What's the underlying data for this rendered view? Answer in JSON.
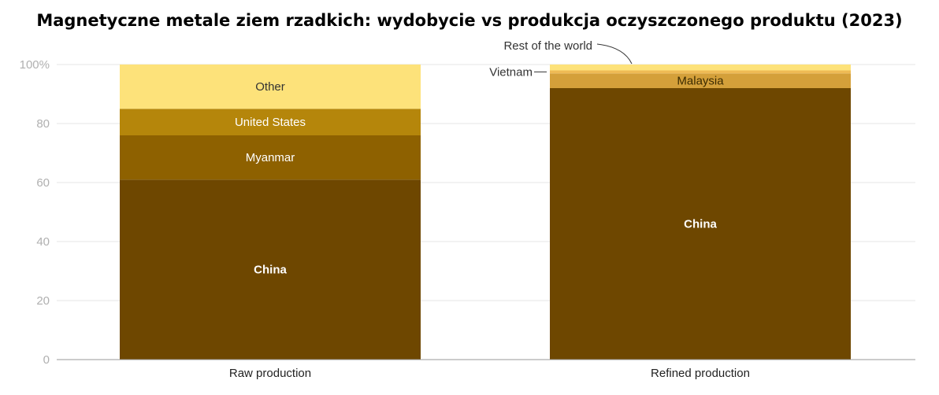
{
  "chart_data": {
    "type": "bar",
    "stacked": true,
    "title": "Magnetyczne metale ziem rzadkich: wydobycie vs produkcja oczyszczonego produktu (2023)",
    "xlabel": "",
    "ylabel": "",
    "ylim": [
      0,
      100
    ],
    "yticks": [
      "0",
      "20",
      "40",
      "60",
      "80",
      "100%"
    ],
    "grid": true,
    "categories": [
      "Raw production",
      "Refined production"
    ],
    "series": [
      {
        "name": "China",
        "values": [
          61,
          92
        ],
        "color": "#6e4700",
        "label_color": "#ffffff",
        "bold": true
      },
      {
        "name": "Myanmar",
        "values": [
          15,
          0
        ],
        "color": "#8e6100",
        "label_color": "#ffffff",
        "bold": false
      },
      {
        "name": "United States",
        "values": [
          9,
          0
        ],
        "color": "#b5860b",
        "label_color": "#ffffff",
        "bold": false
      },
      {
        "name": "Malaysia",
        "values": [
          0,
          5
        ],
        "color": "#d4a03a",
        "label_color": "#3a2a00",
        "bold": false
      },
      {
        "name": "Vietnam",
        "values": [
          0,
          1
        ],
        "color": "#eebb55",
        "label_color": "#333333",
        "bold": false
      },
      {
        "name": "Other",
        "values": [
          15,
          0
        ],
        "color": "#fde27a",
        "label_color": "#333333",
        "bold": false
      },
      {
        "name": "Rest of the world",
        "values": [
          0,
          2
        ],
        "color": "#fde27a",
        "label_color": "#333333",
        "bold": false
      }
    ],
    "inside_labels": [
      {
        "series": "China",
        "category": 0
      },
      {
        "series": "Myanmar",
        "category": 0
      },
      {
        "series": "United States",
        "category": 0
      },
      {
        "series": "Other",
        "category": 0
      },
      {
        "series": "China",
        "category": 1
      },
      {
        "series": "Malaysia",
        "category": 1
      }
    ],
    "callouts": [
      {
        "series": "Vietnam",
        "category": 1,
        "side": "left"
      },
      {
        "series": "Rest of the world",
        "category": 1,
        "side": "top-left"
      }
    ]
  }
}
